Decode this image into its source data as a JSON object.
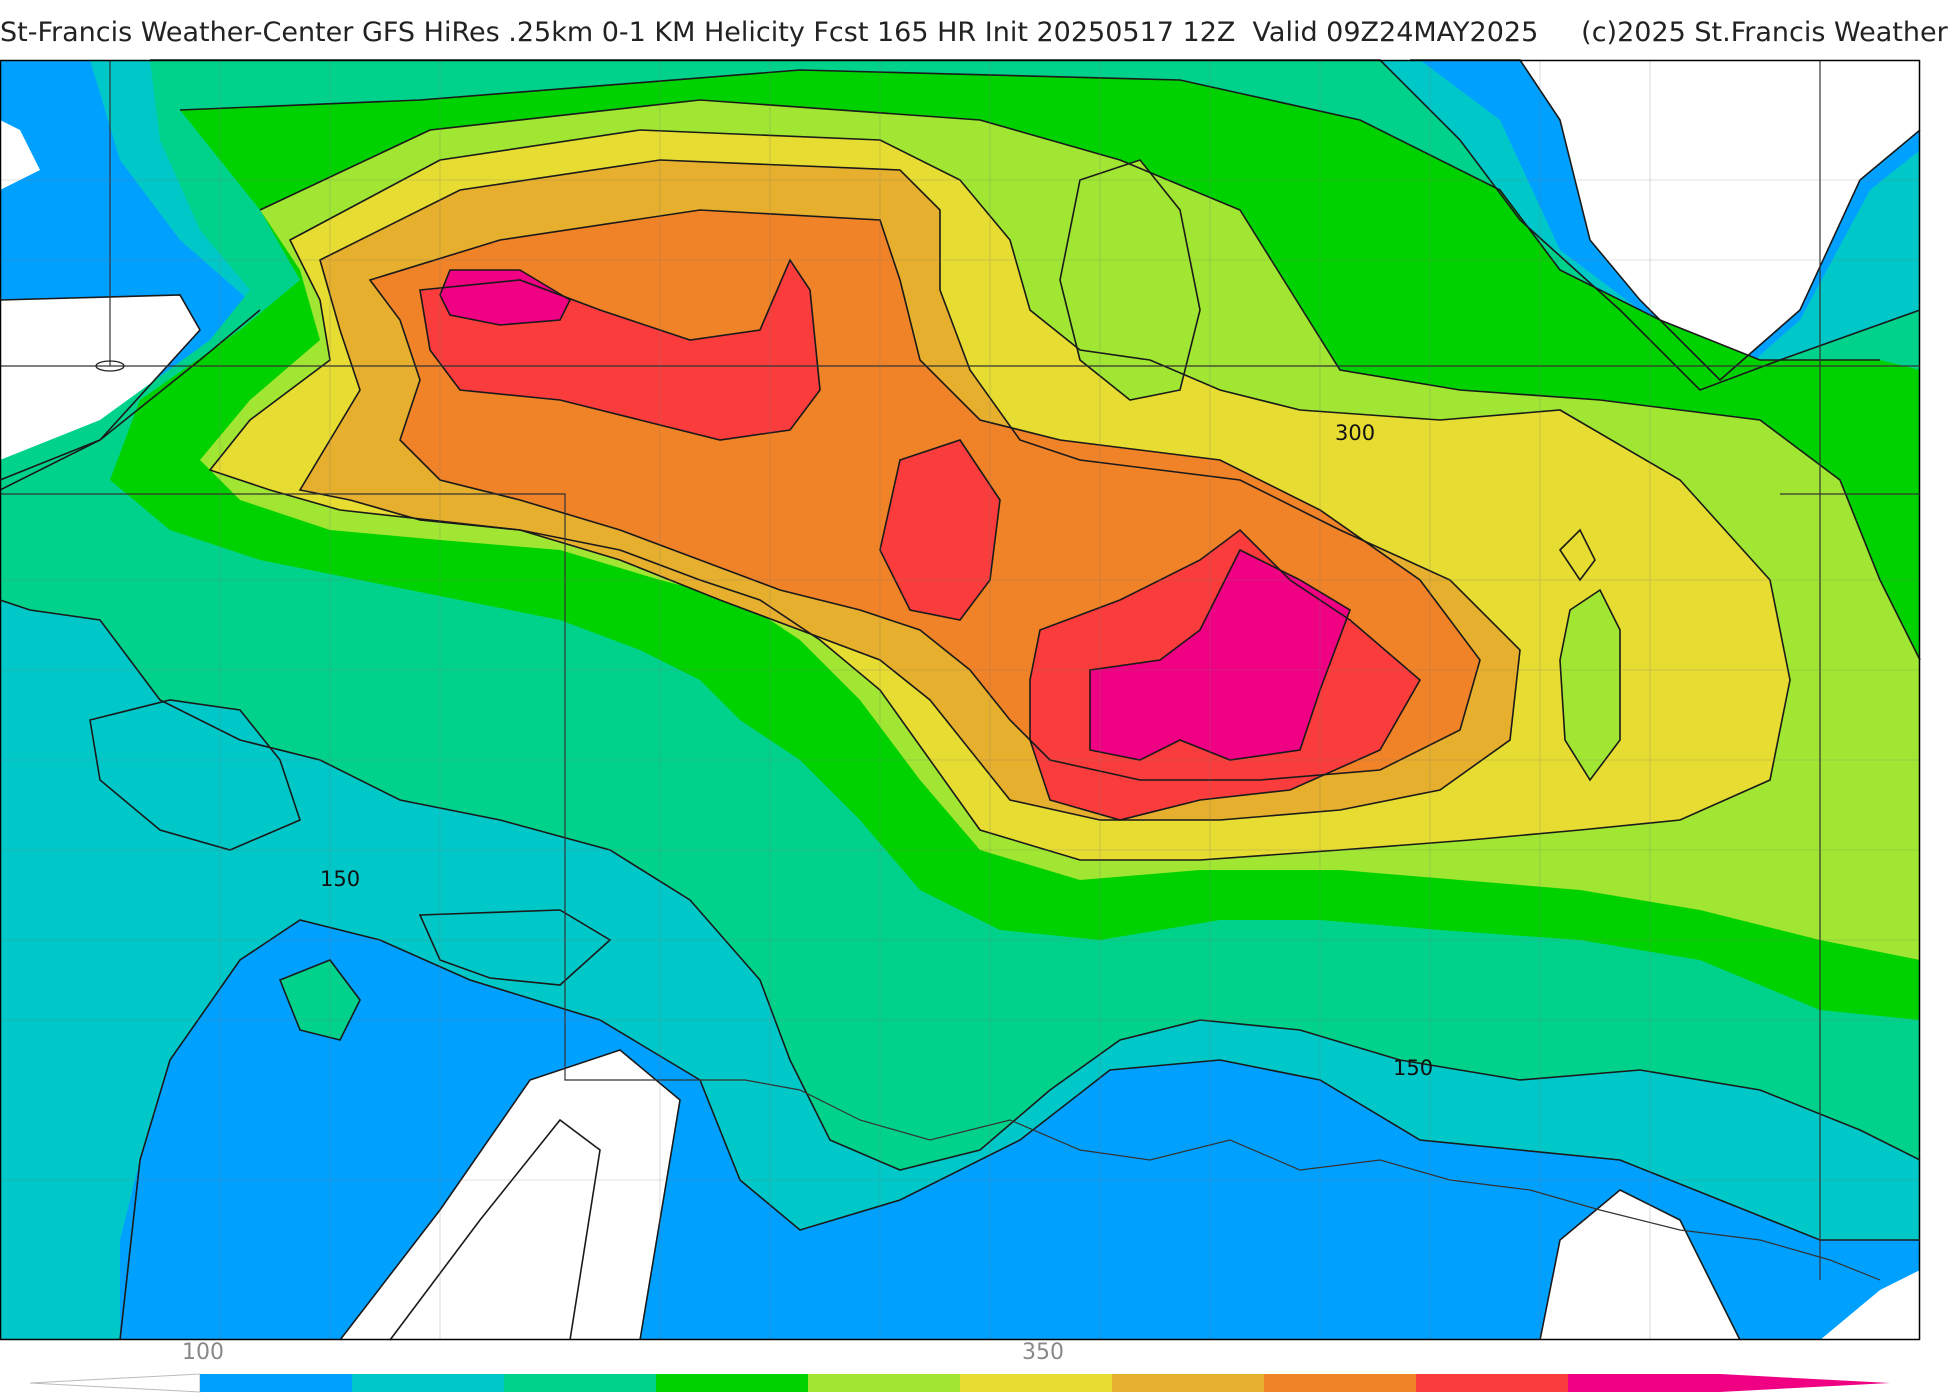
{
  "header": {
    "title": "St-Francis Weather-Center GFS HiRes .25km 0-1 KM Helicity Fcst 165 HR Init 20250517 12Z  Valid 09Z24MAY2025     (c)2025 St.Francis Weather"
  },
  "map": {
    "contour_labels": [
      "300",
      "150",
      "150"
    ]
  },
  "legend": {
    "labels": [
      "100",
      "350"
    ],
    "colors": [
      "#00a0ff",
      "#00c8c8",
      "#00d28c",
      "#00d200",
      "#a0e632",
      "#e6dc32",
      "#e6af2d",
      "#f08228",
      "#fa3c3c",
      "#f00082"
    ]
  }
}
